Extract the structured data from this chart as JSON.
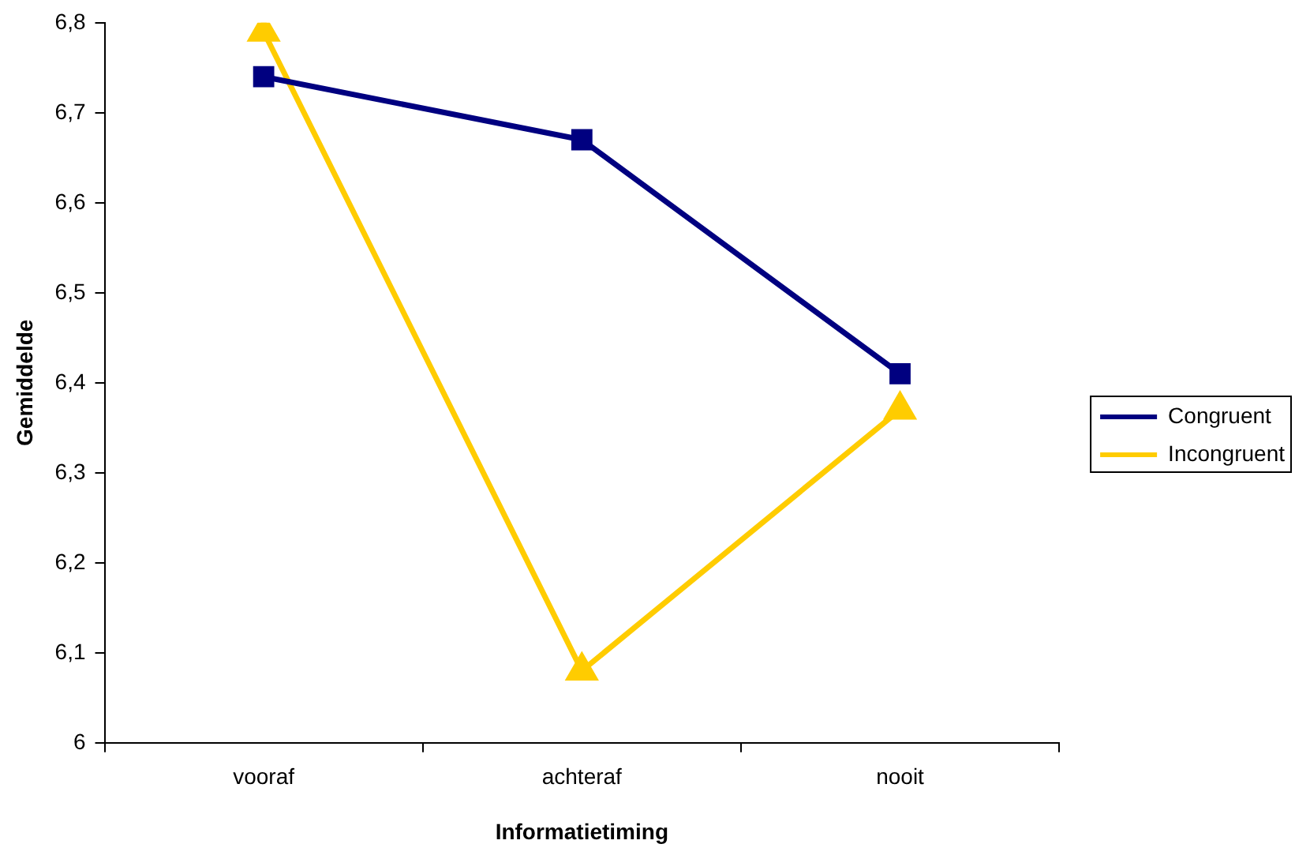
{
  "chart_data": {
    "type": "line",
    "xlabel": "Informatietiming",
    "ylabel": "Gemiddelde",
    "categories": [
      "vooraf",
      "achteraf",
      "nooit"
    ],
    "series": [
      {
        "name": "Congruent",
        "color": "#000080",
        "marker": "square",
        "values": [
          6.74,
          6.67,
          6.41
        ]
      },
      {
        "name": "Incongruent",
        "color": "#ffcc00",
        "marker": "triangle",
        "values": [
          6.79,
          6.08,
          6.37
        ]
      }
    ],
    "ylim": [
      6,
      6.8
    ],
    "yticks": [
      6,
      {
        "value": 6.1,
        "label": "6,1"
      },
      {
        "value": 6.2,
        "label": "6,2"
      },
      {
        "value": 6.3,
        "label": "6,3"
      },
      {
        "value": 6.4,
        "label": "6,4"
      },
      {
        "value": 6.5,
        "label": "6,5"
      },
      {
        "value": 6.6,
        "label": "6,6"
      },
      {
        "value": 6.7,
        "label": "6,7"
      },
      {
        "value": 6.8,
        "label": "6,8"
      }
    ],
    "grid": false,
    "legend": "right",
    "line_style": "solid"
  }
}
